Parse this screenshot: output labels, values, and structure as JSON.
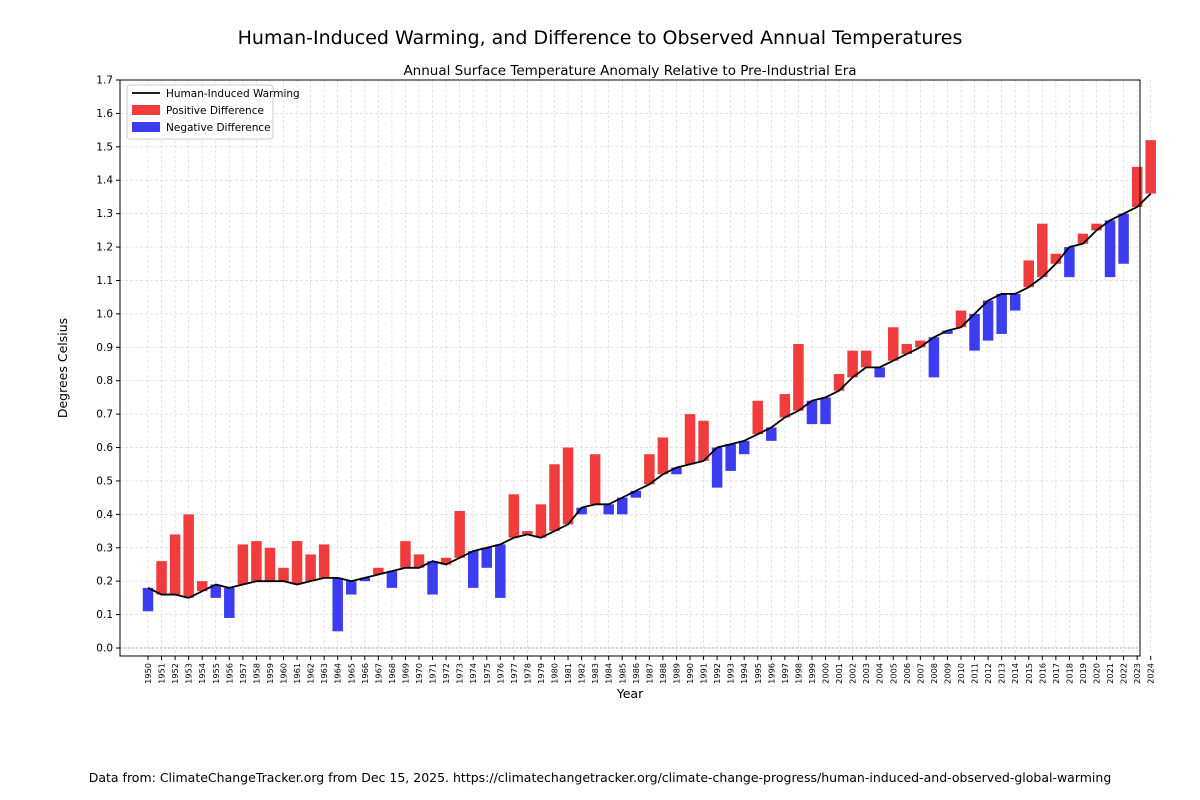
{
  "figure": {
    "suptitle": "Human-Induced Warming, and Difference to Observed Annual Temperatures",
    "footer": "Data from: ClimateChangeTracker.org from Dec 15, 2025. https://climatechangetracker.org/climate-change-progress/human-induced-and-observed-global-warming"
  },
  "chart_data": {
    "type": "bar",
    "title": "Annual Surface Temperature Anomaly Relative to Pre-Industrial Era",
    "xlabel": "Year",
    "ylabel": "Degrees Celsius",
    "ylim": [
      0.0,
      1.7
    ],
    "yticks": [
      "0.0",
      "0.1",
      "0.2",
      "0.3",
      "0.4",
      "0.5",
      "0.6",
      "0.7",
      "0.8",
      "0.9",
      "1.0",
      "1.1",
      "1.2",
      "1.3",
      "1.4",
      "1.5",
      "1.6",
      "1.7"
    ],
    "grid": true,
    "legend_position": "top-left",
    "colors": {
      "line": "#000000",
      "positive": "#f03c3c",
      "negative": "#3c3cf0",
      "zero_line": "#999999"
    },
    "legend": {
      "line": "Human-Induced Warming",
      "positive": "Positive Difference",
      "negative": "Negative Difference"
    },
    "years": [
      1950,
      1951,
      1952,
      1953,
      1954,
      1955,
      1956,
      1957,
      1958,
      1959,
      1960,
      1961,
      1962,
      1963,
      1964,
      1965,
      1966,
      1967,
      1968,
      1969,
      1970,
      1971,
      1972,
      1973,
      1974,
      1975,
      1976,
      1977,
      1978,
      1979,
      1980,
      1981,
      1982,
      1983,
      1984,
      1985,
      1986,
      1987,
      1988,
      1989,
      1990,
      1991,
      1992,
      1993,
      1994,
      1995,
      1996,
      1997,
      1998,
      1999,
      2000,
      2001,
      2002,
      2003,
      2004,
      2005,
      2006,
      2007,
      2008,
      2009,
      2010,
      2011,
      2012,
      2013,
      2014,
      2015,
      2016,
      2017,
      2018,
      2019,
      2020,
      2021,
      2022,
      2023,
      2024
    ],
    "series": [
      {
        "name": "Human-Induced Warming",
        "values": [
          0.18,
          0.16,
          0.16,
          0.15,
          0.17,
          0.19,
          0.18,
          0.19,
          0.2,
          0.2,
          0.2,
          0.19,
          0.2,
          0.21,
          0.21,
          0.2,
          0.21,
          0.22,
          0.23,
          0.24,
          0.24,
          0.26,
          0.25,
          0.27,
          0.29,
          0.3,
          0.31,
          0.33,
          0.34,
          0.33,
          0.35,
          0.37,
          0.42,
          0.43,
          0.43,
          0.45,
          0.47,
          0.49,
          0.52,
          0.54,
          0.55,
          0.56,
          0.6,
          0.61,
          0.62,
          0.64,
          0.66,
          0.69,
          0.71,
          0.74,
          0.75,
          0.77,
          0.81,
          0.84,
          0.84,
          0.86,
          0.88,
          0.9,
          0.93,
          0.95,
          0.96,
          1.0,
          1.04,
          1.06,
          1.06,
          1.08,
          1.11,
          1.15,
          1.2,
          1.21,
          1.25,
          1.28,
          1.3,
          1.32,
          1.36
        ]
      },
      {
        "name": "Observed",
        "values": [
          0.11,
          0.26,
          0.34,
          0.4,
          0.2,
          0.15,
          0.09,
          0.31,
          0.32,
          0.3,
          0.24,
          0.32,
          0.28,
          0.31,
          0.05,
          0.16,
          0.2,
          0.24,
          0.18,
          0.32,
          0.28,
          0.16,
          0.27,
          0.41,
          0.18,
          0.24,
          0.15,
          0.46,
          0.35,
          0.43,
          0.55,
          0.6,
          0.4,
          0.58,
          0.4,
          0.4,
          0.45,
          0.58,
          0.63,
          0.52,
          0.7,
          0.68,
          0.48,
          0.53,
          0.58,
          0.74,
          0.62,
          0.76,
          0.91,
          0.67,
          0.67,
          0.82,
          0.89,
          0.89,
          0.81,
          0.96,
          0.91,
          0.92,
          0.81,
          0.94,
          1.01,
          0.89,
          0.92,
          0.94,
          1.01,
          1.16,
          1.27,
          1.18,
          1.11,
          1.24,
          1.27,
          1.11,
          1.15,
          1.44,
          1.52
        ]
      }
    ]
  }
}
